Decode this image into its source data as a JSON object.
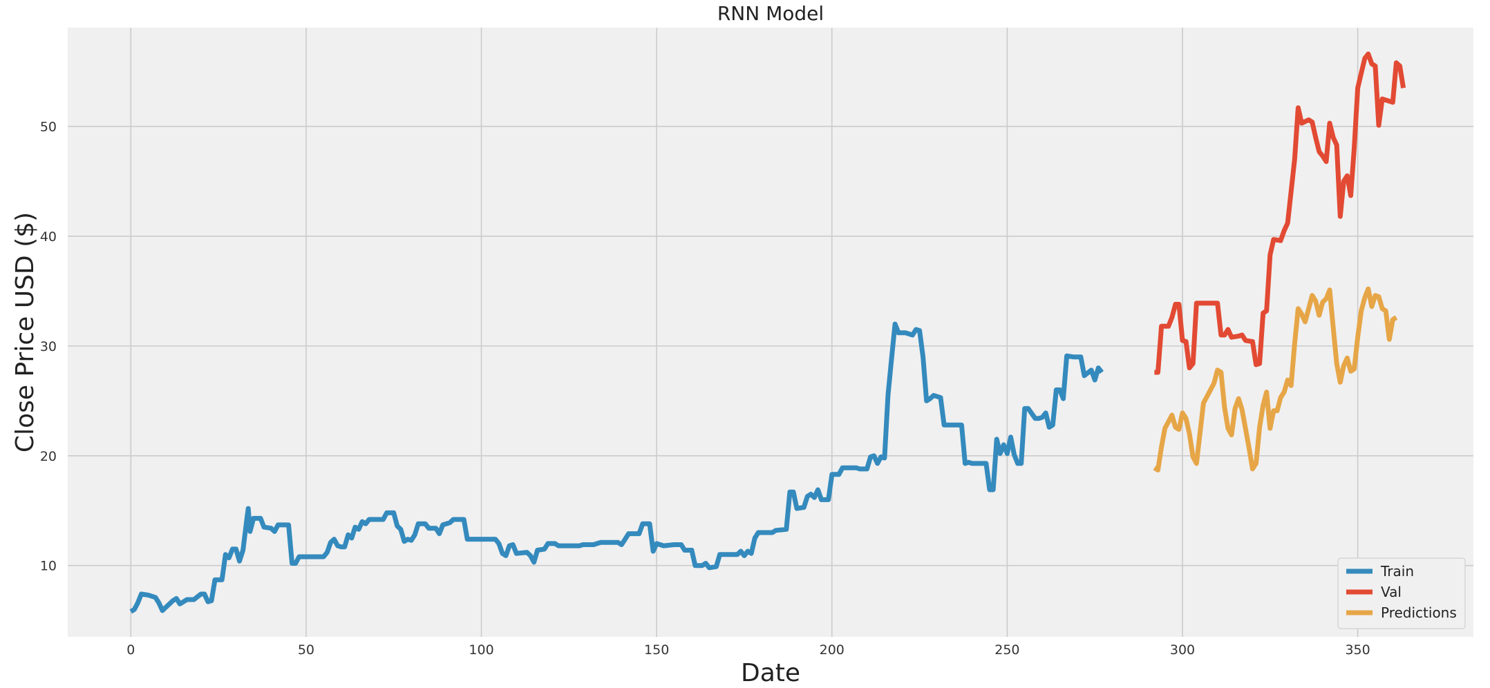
{
  "chart_data": {
    "type": "line",
    "title": "RNN Model",
    "xlabel": "Date",
    "ylabel": "Close Price USD ($)",
    "xlim": [
      -18,
      383
    ],
    "ylim": [
      3.5,
      59
    ],
    "xticks": [
      0,
      50,
      100,
      150,
      200,
      250,
      300,
      350
    ],
    "yticks": [
      10,
      20,
      30,
      40,
      50
    ],
    "grid": true,
    "legend_position": "bottom-right",
    "series": [
      {
        "name": "Train",
        "color": "#348ABD",
        "points": [
          [
            0,
            5.8
          ],
          [
            1,
            6.0
          ],
          [
            2,
            6.6
          ],
          [
            3,
            7.4
          ],
          [
            5,
            7.3
          ],
          [
            7,
            7.1
          ],
          [
            8,
            6.6
          ],
          [
            9,
            5.9
          ],
          [
            10,
            6.2
          ],
          [
            12,
            6.8
          ],
          [
            13,
            7.0
          ],
          [
            14,
            6.5
          ],
          [
            16,
            6.9
          ],
          [
            18,
            6.9
          ],
          [
            20,
            7.4
          ],
          [
            21,
            7.4
          ],
          [
            22,
            6.7
          ],
          [
            23,
            6.8
          ],
          [
            24,
            8.7
          ],
          [
            26,
            8.7
          ],
          [
            27,
            11.0
          ],
          [
            28,
            10.7
          ],
          [
            29,
            11.5
          ],
          [
            30,
            11.5
          ],
          [
            31,
            10.4
          ],
          [
            32,
            11.4
          ],
          [
            33,
            14.0
          ],
          [
            33.5,
            15.2
          ],
          [
            34,
            13.1
          ],
          [
            35,
            14.3
          ],
          [
            37,
            14.3
          ],
          [
            38,
            13.5
          ],
          [
            40,
            13.4
          ],
          [
            41,
            13.1
          ],
          [
            42,
            13.7
          ],
          [
            45,
            13.7
          ],
          [
            46,
            10.2
          ],
          [
            47,
            10.2
          ],
          [
            48,
            10.8
          ],
          [
            51,
            10.8
          ],
          [
            55,
            10.8
          ],
          [
            56,
            11.2
          ],
          [
            57,
            12.1
          ],
          [
            58,
            12.4
          ],
          [
            59,
            11.8
          ],
          [
            60,
            11.7
          ],
          [
            61,
            11.7
          ],
          [
            62,
            12.8
          ],
          [
            63,
            12.5
          ],
          [
            64,
            13.5
          ],
          [
            65,
            13.3
          ],
          [
            66,
            14.0
          ],
          [
            67,
            13.8
          ],
          [
            68,
            14.2
          ],
          [
            72,
            14.2
          ],
          [
            73,
            14.8
          ],
          [
            75,
            14.8
          ],
          [
            76,
            13.6
          ],
          [
            77,
            13.3
          ],
          [
            78,
            12.2
          ],
          [
            79,
            12.4
          ],
          [
            80,
            12.3
          ],
          [
            81,
            12.8
          ],
          [
            82,
            13.8
          ],
          [
            84,
            13.8
          ],
          [
            85,
            13.4
          ],
          [
            87,
            13.4
          ],
          [
            88,
            12.9
          ],
          [
            89,
            13.7
          ],
          [
            91,
            13.9
          ],
          [
            92,
            14.2
          ],
          [
            95,
            14.2
          ],
          [
            96,
            12.4
          ],
          [
            100,
            12.4
          ],
          [
            104,
            12.4
          ],
          [
            105,
            12.0
          ],
          [
            106,
            11.1
          ],
          [
            107,
            10.9
          ],
          [
            108,
            11.8
          ],
          [
            109,
            11.9
          ],
          [
            110,
            11.1
          ],
          [
            113,
            11.2
          ],
          [
            114,
            10.9
          ],
          [
            115,
            10.3
          ],
          [
            116,
            11.4
          ],
          [
            118,
            11.5
          ],
          [
            119,
            12.0
          ],
          [
            121,
            12.0
          ],
          [
            122,
            11.8
          ],
          [
            124,
            11.8
          ],
          [
            128,
            11.8
          ],
          [
            129,
            11.9
          ],
          [
            132,
            11.9
          ],
          [
            134,
            12.1
          ],
          [
            139,
            12.1
          ],
          [
            140,
            11.9
          ],
          [
            141,
            12.4
          ],
          [
            142,
            12.9
          ],
          [
            145,
            12.9
          ],
          [
            146,
            13.8
          ],
          [
            148,
            13.8
          ],
          [
            149,
            11.3
          ],
          [
            150,
            12.0
          ],
          [
            152,
            11.8
          ],
          [
            155,
            11.9
          ],
          [
            157,
            11.9
          ],
          [
            158,
            11.4
          ],
          [
            160,
            11.4
          ],
          [
            161,
            10.0
          ],
          [
            163,
            10.0
          ],
          [
            164,
            10.2
          ],
          [
            165,
            9.8
          ],
          [
            167,
            9.9
          ],
          [
            168,
            11.0
          ],
          [
            173,
            11.0
          ],
          [
            174,
            11.3
          ],
          [
            175,
            10.9
          ],
          [
            176,
            11.3
          ],
          [
            177,
            11.1
          ],
          [
            178,
            12.5
          ],
          [
            179,
            13.0
          ],
          [
            183,
            13.0
          ],
          [
            184,
            13.2
          ],
          [
            187,
            13.3
          ],
          [
            188,
            16.7
          ],
          [
            189,
            16.7
          ],
          [
            190,
            15.2
          ],
          [
            192,
            15.3
          ],
          [
            193,
            16.3
          ],
          [
            194,
            16.5
          ],
          [
            195,
            16.2
          ],
          [
            196,
            16.9
          ],
          [
            197,
            16.0
          ],
          [
            199,
            16.0
          ],
          [
            200,
            18.3
          ],
          [
            202,
            18.3
          ],
          [
            203,
            18.9
          ],
          [
            207,
            18.9
          ],
          [
            208,
            18.8
          ],
          [
            210,
            18.8
          ],
          [
            211,
            19.9
          ],
          [
            212,
            20.0
          ],
          [
            213,
            19.3
          ],
          [
            214,
            19.9
          ],
          [
            215,
            19.8
          ],
          [
            216,
            25.5
          ],
          [
            217,
            28.8
          ],
          [
            218,
            32.0
          ],
          [
            219,
            31.2
          ],
          [
            221,
            31.2
          ],
          [
            223,
            31.0
          ],
          [
            224,
            31.5
          ],
          [
            225,
            31.4
          ],
          [
            226,
            29.0
          ],
          [
            227,
            25.0
          ],
          [
            228,
            25.2
          ],
          [
            229,
            25.5
          ],
          [
            231,
            25.3
          ],
          [
            232,
            22.8
          ],
          [
            234,
            22.8
          ],
          [
            236,
            22.8
          ],
          [
            237,
            22.8
          ],
          [
            238,
            19.3
          ],
          [
            239,
            19.4
          ],
          [
            240,
            19.3
          ],
          [
            244,
            19.3
          ],
          [
            245,
            16.9
          ],
          [
            246,
            16.9
          ],
          [
            247,
            21.5
          ],
          [
            248,
            20.2
          ],
          [
            249,
            21.0
          ],
          [
            250,
            20.2
          ],
          [
            251,
            21.7
          ],
          [
            252,
            20.1
          ],
          [
            253,
            19.3
          ],
          [
            254,
            19.3
          ],
          [
            255,
            24.3
          ],
          [
            256,
            24.3
          ],
          [
            258,
            23.4
          ],
          [
            259,
            23.4
          ],
          [
            260,
            23.5
          ],
          [
            261,
            23.9
          ],
          [
            262,
            22.6
          ],
          [
            263,
            22.8
          ],
          [
            264,
            26.0
          ],
          [
            265,
            26.0
          ],
          [
            266,
            25.2
          ],
          [
            267,
            29.1
          ],
          [
            269,
            29.0
          ],
          [
            271,
            29.0
          ],
          [
            272,
            27.3
          ],
          [
            274,
            27.8
          ],
          [
            275,
            26.9
          ],
          [
            276,
            28.0
          ],
          [
            277,
            27.6
          ]
        ]
      },
      {
        "name": "Val",
        "color": "#E24A33",
        "points": [
          [
            292,
            27.6
          ],
          [
            293,
            27.6
          ],
          [
            294,
            31.8
          ],
          [
            296,
            31.8
          ],
          [
            297,
            32.6
          ],
          [
            298,
            33.8
          ],
          [
            299,
            33.8
          ],
          [
            300,
            30.5
          ],
          [
            301,
            30.4
          ],
          [
            302,
            28.0
          ],
          [
            303,
            28.4
          ],
          [
            304,
            33.9
          ],
          [
            306,
            33.9
          ],
          [
            310,
            33.9
          ],
          [
            311,
            31.0
          ],
          [
            312,
            31.0
          ],
          [
            313,
            31.5
          ],
          [
            314,
            30.8
          ],
          [
            316,
            30.9
          ],
          [
            317,
            31.0
          ],
          [
            318,
            30.5
          ],
          [
            320,
            30.4
          ],
          [
            321,
            28.3
          ],
          [
            322,
            28.4
          ],
          [
            323,
            33.0
          ],
          [
            324,
            33.2
          ],
          [
            325,
            38.3
          ],
          [
            326,
            39.7
          ],
          [
            328,
            39.6
          ],
          [
            329,
            40.5
          ],
          [
            330,
            41.2
          ],
          [
            332,
            47.0
          ],
          [
            333,
            51.7
          ],
          [
            334,
            50.3
          ],
          [
            336,
            50.6
          ],
          [
            337,
            50.4
          ],
          [
            338,
            49.0
          ],
          [
            339,
            47.7
          ],
          [
            340,
            47.3
          ],
          [
            341,
            46.8
          ],
          [
            342,
            50.3
          ],
          [
            343,
            49.0
          ],
          [
            344,
            48.3
          ],
          [
            345,
            41.8
          ],
          [
            346,
            45.0
          ],
          [
            347,
            45.5
          ],
          [
            348,
            43.7
          ],
          [
            349,
            48.0
          ],
          [
            350,
            53.5
          ],
          [
            352,
            56.2
          ],
          [
            353,
            56.6
          ],
          [
            354,
            55.7
          ],
          [
            355,
            55.5
          ],
          [
            356,
            50.1
          ],
          [
            357,
            52.5
          ],
          [
            358,
            52.4
          ],
          [
            360,
            52.2
          ],
          [
            361,
            55.8
          ],
          [
            362,
            55.5
          ],
          [
            363,
            53.5
          ]
        ]
      },
      {
        "name": "Predictions",
        "color": "#E6A647",
        "points": [
          [
            292,
            18.9
          ],
          [
            293,
            18.7
          ],
          [
            294,
            20.8
          ],
          [
            295,
            22.5
          ],
          [
            297,
            23.7
          ],
          [
            298,
            22.6
          ],
          [
            299,
            22.4
          ],
          [
            300,
            23.9
          ],
          [
            301,
            23.4
          ],
          [
            302,
            22.0
          ],
          [
            303,
            19.9
          ],
          [
            304,
            19.3
          ],
          [
            306,
            24.8
          ],
          [
            307,
            25.4
          ],
          [
            309,
            26.6
          ],
          [
            310,
            27.8
          ],
          [
            311,
            27.6
          ],
          [
            312,
            24.4
          ],
          [
            313,
            22.5
          ],
          [
            314,
            21.9
          ],
          [
            315,
            24.3
          ],
          [
            316,
            25.2
          ],
          [
            317,
            24.2
          ],
          [
            319,
            20.7
          ],
          [
            320,
            18.8
          ],
          [
            321,
            19.3
          ],
          [
            322,
            22.6
          ],
          [
            323,
            24.6
          ],
          [
            324,
            25.8
          ],
          [
            325,
            22.5
          ],
          [
            326,
            24.1
          ],
          [
            327,
            24.1
          ],
          [
            328,
            25.3
          ],
          [
            329,
            25.8
          ],
          [
            330,
            26.9
          ],
          [
            331,
            26.4
          ],
          [
            332,
            30.2
          ],
          [
            333,
            33.4
          ],
          [
            334,
            32.9
          ],
          [
            335,
            32.2
          ],
          [
            336,
            33.4
          ],
          [
            337,
            34.6
          ],
          [
            338,
            34.1
          ],
          [
            339,
            32.8
          ],
          [
            340,
            34.0
          ],
          [
            341,
            34.3
          ],
          [
            342,
            35.1
          ],
          [
            343,
            31.7
          ],
          [
            344,
            28.4
          ],
          [
            345,
            26.7
          ],
          [
            346,
            28.2
          ],
          [
            347,
            28.9
          ],
          [
            348,
            27.7
          ],
          [
            349,
            27.9
          ],
          [
            350,
            30.8
          ],
          [
            351,
            33.2
          ],
          [
            352,
            34.4
          ],
          [
            353,
            35.2
          ],
          [
            354,
            33.6
          ],
          [
            355,
            34.6
          ],
          [
            356,
            34.5
          ],
          [
            357,
            33.4
          ],
          [
            358,
            33.2
          ],
          [
            359,
            30.6
          ],
          [
            360,
            32.4
          ],
          [
            361,
            32.6
          ]
        ]
      }
    ]
  }
}
